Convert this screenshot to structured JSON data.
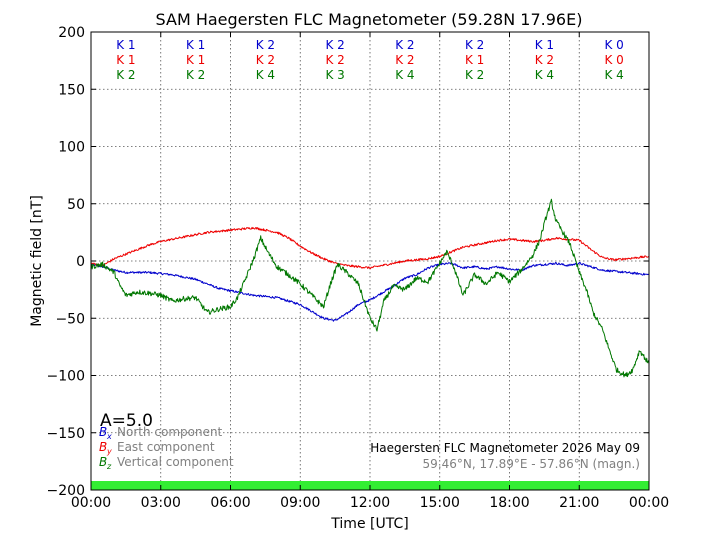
{
  "chart_data": {
    "type": "line",
    "title": "SAM Haegersten FLC Magnetometer (59.28N 17.96E)",
    "xlabel": "Time [UTC]",
    "ylabel": "Magnetic field [nT]",
    "xlim": [
      0,
      24
    ],
    "ylim": [
      -200,
      200
    ],
    "x_ticks": [
      {
        "v": 0,
        "label": "00:00"
      },
      {
        "v": 3,
        "label": "03:00"
      },
      {
        "v": 6,
        "label": "06:00"
      },
      {
        "v": 9,
        "label": "09:00"
      },
      {
        "v": 12,
        "label": "12:00"
      },
      {
        "v": 15,
        "label": "15:00"
      },
      {
        "v": 18,
        "label": "18:00"
      },
      {
        "v": 21,
        "label": "21:00"
      },
      {
        "v": 24,
        "label": "00:00"
      }
    ],
    "y_ticks": [
      {
        "v": 200,
        "label": "200"
      },
      {
        "v": 150,
        "label": "150"
      },
      {
        "v": 100,
        "label": "100"
      },
      {
        "v": 50,
        "label": "50"
      },
      {
        "v": 0,
        "label": "0"
      },
      {
        "v": -50,
        "label": "−50"
      },
      {
        "v": -100,
        "label": "−100"
      },
      {
        "v": -150,
        "label": "−150"
      },
      {
        "v": -200,
        "label": "−200"
      }
    ],
    "grid": true,
    "k_indices": {
      "centers": [
        1.5,
        4.5,
        7.5,
        10.5,
        13.5,
        16.5,
        19.5,
        22.5
      ],
      "rows": [
        {
          "color": "#0000cc",
          "labels": [
            "K 1",
            "K 1",
            "K 2",
            "K 2",
            "K 2",
            "K 2",
            "K 1",
            "K 0"
          ]
        },
        {
          "color": "#ee0000",
          "labels": [
            "K 1",
            "K 1",
            "K 2",
            "K 2",
            "K 2",
            "K 1",
            "K 2",
            "K 0"
          ]
        },
        {
          "color": "#007700",
          "labels": [
            "K 2",
            "K 2",
            "K 4",
            "K 3",
            "K 4",
            "K 2",
            "K 4",
            "K 4"
          ]
        }
      ]
    },
    "a_index": "A=5.0",
    "legend": {
      "position": "bottom-left",
      "items": [
        {
          "symbol": "B",
          "sub": "x",
          "label": "North component",
          "color": "#0000cc"
        },
        {
          "symbol": "B",
          "sub": "y",
          "label": "East component",
          "color": "#ee0000"
        },
        {
          "symbol": "B",
          "sub": "z",
          "label": "Vertical component",
          "color": "#007700"
        }
      ]
    },
    "info": {
      "line1": "Haegersten FLC Magnetometer 2026 May 09",
      "line2": "59.46°N, 17.89°E - 57.86°N (magn.)"
    },
    "status_bar_color": "#33ee33",
    "series": [
      {
        "name": "North component",
        "color": "#0000cc",
        "x": [
          0,
          0.5,
          1,
          1.5,
          2,
          2.5,
          3,
          3.5,
          4,
          4.5,
          5,
          5.5,
          6,
          6.5,
          7,
          7.5,
          8,
          8.5,
          9,
          9.5,
          10,
          10.5,
          11,
          11.5,
          12,
          12.5,
          13,
          13.5,
          14,
          14.5,
          15,
          15.5,
          16,
          16.5,
          17,
          17.5,
          18,
          18.5,
          19,
          19.5,
          20,
          20.5,
          21,
          21.5,
          22,
          22.5,
          23,
          23.5,
          24
        ],
        "y": [
          -3,
          -5,
          -8,
          -10,
          -10,
          -10,
          -11,
          -12,
          -14,
          -16,
          -20,
          -24,
          -26,
          -28,
          -30,
          -31,
          -32,
          -35,
          -38,
          -44,
          -50,
          -52,
          -46,
          -38,
          -34,
          -28,
          -22,
          -15,
          -12,
          -6,
          -3,
          -2,
          -6,
          -5,
          -7,
          -5,
          -7,
          -8,
          -4,
          -3,
          -2,
          -4,
          -2,
          -5,
          -8,
          -9,
          -10,
          -11,
          -12
        ]
      },
      {
        "name": "East component",
        "color": "#ee0000",
        "x": [
          0,
          0.5,
          1,
          1.5,
          2,
          2.5,
          3,
          3.5,
          4,
          4.5,
          5,
          5.5,
          6,
          6.5,
          7,
          7.5,
          8,
          8.5,
          9,
          9.5,
          10,
          10.5,
          11,
          11.5,
          12,
          12.5,
          13,
          13.5,
          14,
          14.5,
          15,
          15.5,
          16,
          16.5,
          17,
          17.5,
          18,
          18.5,
          19,
          19.5,
          20,
          20.5,
          21,
          21.5,
          22,
          22.5,
          23,
          23.5,
          24
        ],
        "y": [
          -2,
          -4,
          2,
          6,
          10,
          14,
          17,
          19,
          21,
          23,
          25,
          26,
          27,
          28,
          29,
          27,
          25,
          20,
          13,
          7,
          2,
          -2,
          -4,
          -5,
          -6,
          -4,
          -2,
          0,
          1,
          2,
          4,
          8,
          12,
          14,
          16,
          18,
          19,
          18,
          17,
          18,
          20,
          19,
          18,
          10,
          3,
          1,
          2,
          3,
          4
        ]
      },
      {
        "name": "Vertical component",
        "color": "#007700",
        "x": [
          0,
          0.5,
          1,
          1.2,
          1.5,
          2,
          2.5,
          3,
          3.5,
          4,
          4.5,
          5,
          5.5,
          6,
          6.3,
          6.6,
          7,
          7.3,
          7.6,
          8,
          8.5,
          9,
          9.5,
          10,
          10.3,
          10.6,
          11,
          11.5,
          12,
          12.3,
          12.6,
          13,
          13.5,
          14,
          14.5,
          15,
          15.3,
          15.6,
          16,
          16.5,
          17,
          17.5,
          18,
          18.5,
          19,
          19.3,
          19.6,
          19.8,
          20,
          20.3,
          20.6,
          21,
          21.3,
          21.6,
          22,
          22.3,
          22.6,
          23,
          23.3,
          23.6,
          24
        ],
        "y": [
          -5,
          -3,
          -10,
          -20,
          -30,
          -27,
          -28,
          -30,
          -35,
          -33,
          -32,
          -45,
          -42,
          -40,
          -32,
          -18,
          2,
          20,
          8,
          -5,
          -12,
          -20,
          -30,
          -40,
          -20,
          -3,
          -10,
          -20,
          -50,
          -60,
          -35,
          -22,
          -25,
          -15,
          -18,
          -2,
          8,
          -5,
          -30,
          -12,
          -20,
          -10,
          -18,
          -8,
          5,
          18,
          40,
          52,
          35,
          25,
          15,
          -10,
          -25,
          -45,
          -60,
          -78,
          -95,
          -100,
          -95,
          -78,
          -90
        ]
      }
    ]
  }
}
